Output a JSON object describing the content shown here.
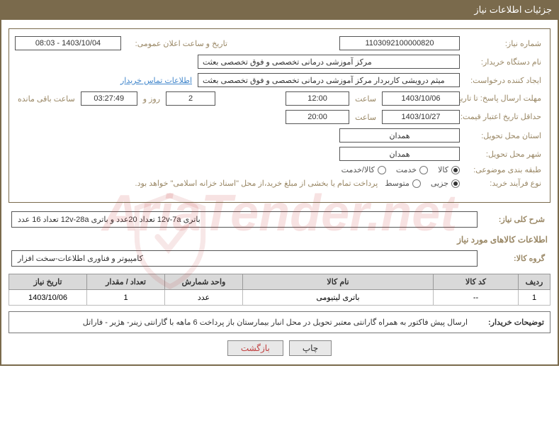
{
  "header": {
    "title": "جزئیات اطلاعات نیاز"
  },
  "fields": {
    "need_no_label": "شماره نیاز:",
    "need_no": "1103092100000820",
    "announce_label": "تاریخ و ساعت اعلان عمومی:",
    "announce_value": "1403/10/04 - 08:03",
    "buyer_org_label": "نام دستگاه خریدار:",
    "buyer_org": "مرکز آموزشی درمانی تخصصی و فوق تخصصی بعثت",
    "requester_label": "ایجاد کننده درخواست:",
    "requester": "میثم درویشی کاربردار مرکز آموزشی درمانی تخصصی و فوق تخصصی بعثت",
    "contact_link": "اطلاعات تماس خریدار",
    "deadline_label": "مهلت ارسال پاسخ: تا تاریخ:",
    "deadline_date": "1403/10/06",
    "time_label": "ساعت",
    "deadline_time": "12:00",
    "days_value": "2",
    "days_and": "روز و",
    "countdown": "03:27:49",
    "remaining": "ساعت باقی مانده",
    "validity_label": "حداقل تاریخ اعتبار قیمت: تا تاریخ:",
    "validity_date": "1403/10/27",
    "validity_time": "20:00",
    "province_label": "استان محل تحویل:",
    "province": "همدان",
    "city_label": "شهر محل تحویل:",
    "city": "همدان",
    "category_label": "طبقه بندی موضوعی:",
    "cat_opt1": "کالا",
    "cat_opt2": "خدمت",
    "cat_opt3": "کالا/خدمت",
    "cat_selected": 0,
    "purchase_type_label": "نوع فرآیند خرید:",
    "pt_opt1": "جزیی",
    "pt_opt2": "متوسط",
    "pt_selected": 0,
    "payment_note": "پرداخت تمام یا بخشی از مبلغ خرید،از محل \"اسناد خزانه اسلامی\" خواهد بود.",
    "desc_label": "شرح کلی نیاز:",
    "desc_value": "باتری 12v-7a تعداد 20عدد و باتری 12v-28a تعداد 16 عدد",
    "items_section": "اطلاعات کالاهای مورد نیاز",
    "group_label": "گروه کالا:",
    "group_value": "کامپیوتر و فناوری اطلاعات-سخت افزار"
  },
  "table": {
    "columns": [
      "ردیف",
      "کد کالا",
      "نام کالا",
      "واحد شمارش",
      "تعداد / مقدار",
      "تاریخ نیاز"
    ],
    "col_widths": [
      "45px",
      "120px",
      "auto",
      "110px",
      "110px",
      "110px"
    ],
    "rows": [
      [
        "1",
        "--",
        "باتری لیتیومی",
        "عدد",
        "1",
        "1403/10/06"
      ]
    ]
  },
  "buyer_notes": {
    "label": "توضیحات خریدار:",
    "text": "ارسال پیش فاکتور به همراه گارانتی معتبر تحویل در محل انبار بیمارستان باز پرداخت 6 ماهه با گارانتی زینر- هژیر - فاراتل"
  },
  "buttons": {
    "print": "چاپ",
    "back": "بازگشت"
  },
  "colors": {
    "header_bg": "#7a6a4c",
    "label_color": "#9a8866",
    "border": "#7a6a4c",
    "link": "#4488cc",
    "th_bg": "#d9d9d9"
  },
  "watermark": "AriaTender.net"
}
